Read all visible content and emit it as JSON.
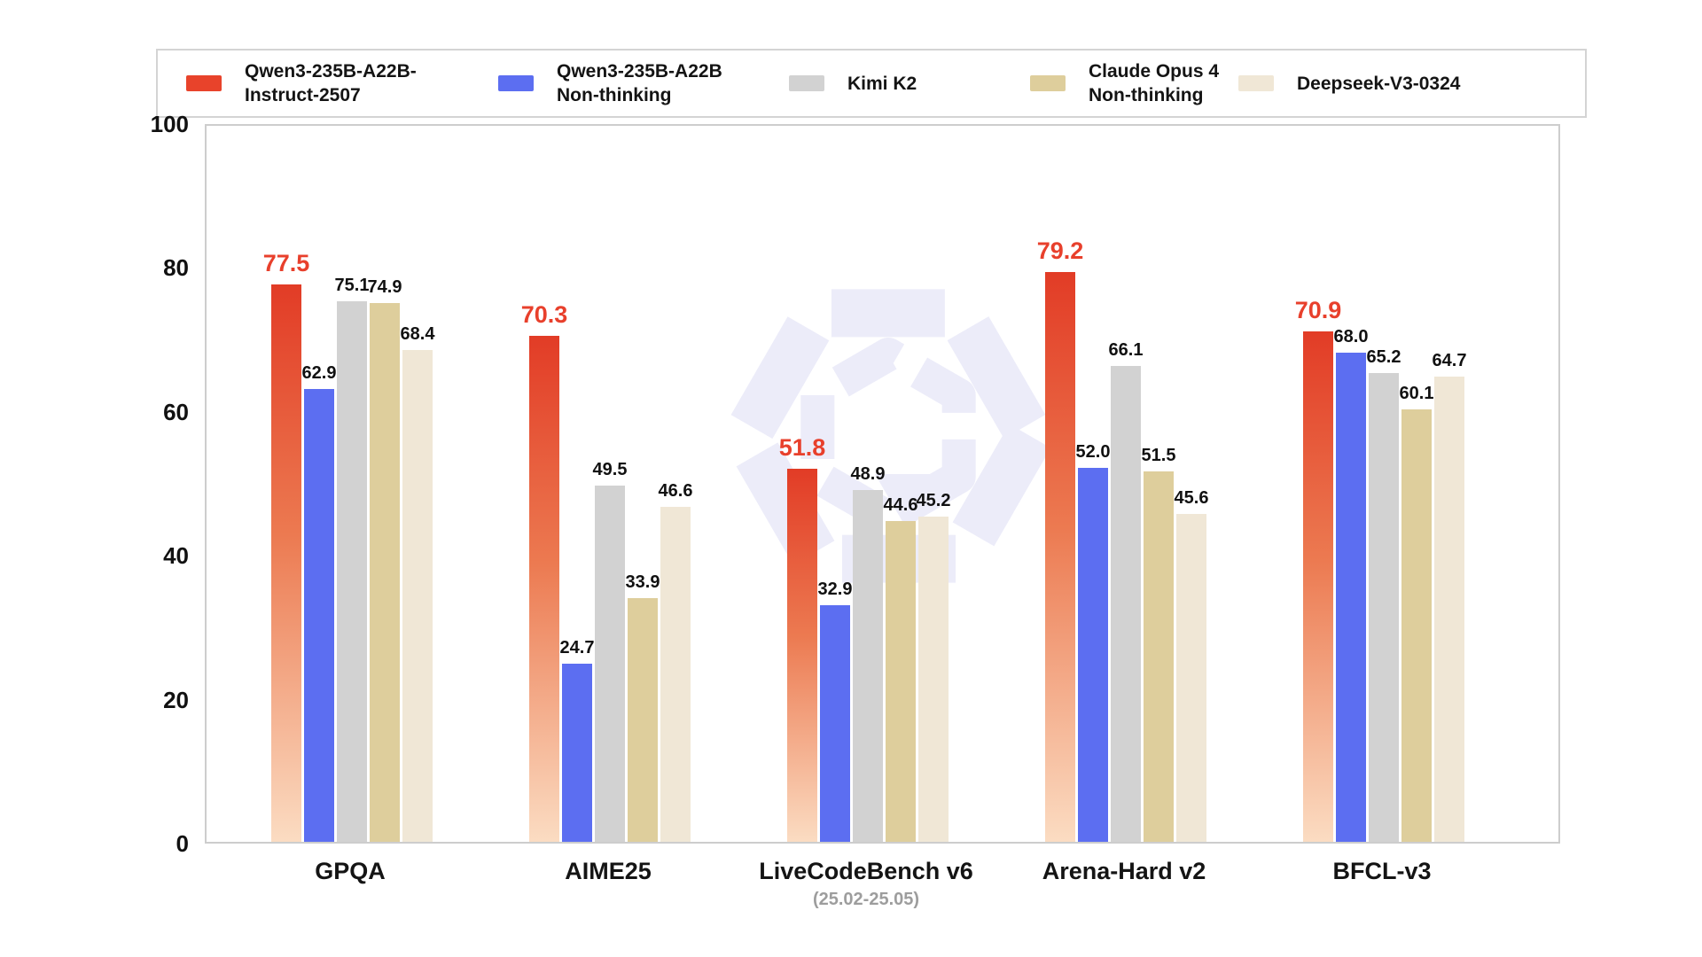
{
  "legend": {
    "items": [
      {
        "name": "Qwen3-235B-A22B-Instruct-2507",
        "label_lines": [
          "Qwen3-235B-A22B-",
          "Instruct-2507"
        ],
        "color": "#e8432b"
      },
      {
        "name": "Qwen3-235B-A22B Non-thinking",
        "label_lines": [
          "Qwen3-235B-A22B",
          "Non-thinking"
        ],
        "color": "#5c6ef1"
      },
      {
        "name": "Kimi K2",
        "label_lines": [
          "Kimi K2"
        ],
        "color": "#d2d2d2"
      },
      {
        "name": "Claude Opus 4 Non-thinking",
        "label_lines": [
          "Claude Opus 4",
          "Non-thinking"
        ],
        "color": "#dece9c"
      },
      {
        "name": "Deepseek-V3-0324",
        "label_lines": [
          "Deepseek-V3-0324"
        ],
        "color": "#f0e7d6"
      }
    ]
  },
  "chart_data": {
    "type": "bar",
    "title": "",
    "categories": [
      "GPQA",
      "AIME25",
      "LiveCodeBench v6",
      "Arena-Hard v2",
      "BFCL-v3"
    ],
    "category_sublabels": [
      "",
      "",
      "(25.02-25.05)",
      "",
      ""
    ],
    "series": [
      {
        "name": "Qwen3-235B-A22B-Instruct-2507",
        "values": [
          77.5,
          70.3,
          51.8,
          79.2,
          70.9
        ],
        "fill_gradient": [
          "#e23c26",
          "#ec7a51",
          "#fbdcc2"
        ],
        "label_color": "#e8402c",
        "highlight": true
      },
      {
        "name": "Qwen3-235B-A22B Non-thinking",
        "values": [
          62.9,
          24.7,
          32.9,
          52.0,
          68.0
        ],
        "fill": "#5c6ef1"
      },
      {
        "name": "Kimi K2",
        "values": [
          75.1,
          49.5,
          48.9,
          66.1,
          65.2
        ],
        "fill": "#d2d2d2"
      },
      {
        "name": "Claude Opus 4 Non-thinking",
        "values": [
          74.9,
          33.9,
          44.6,
          51.5,
          60.1
        ],
        "fill": "#dece9c"
      },
      {
        "name": "Deepseek-V3-0324",
        "values": [
          68.4,
          46.6,
          45.2,
          45.6,
          64.7
        ],
        "fill": "#f0e7d6"
      }
    ],
    "ylim": [
      0,
      100
    ],
    "yticks": [
      0,
      20,
      40,
      60,
      80,
      100
    ],
    "value_label_decimals": 1,
    "grid": false,
    "legend_position": "top",
    "watermark": "qwen-logo",
    "watermark_color": "#ececf9"
  }
}
